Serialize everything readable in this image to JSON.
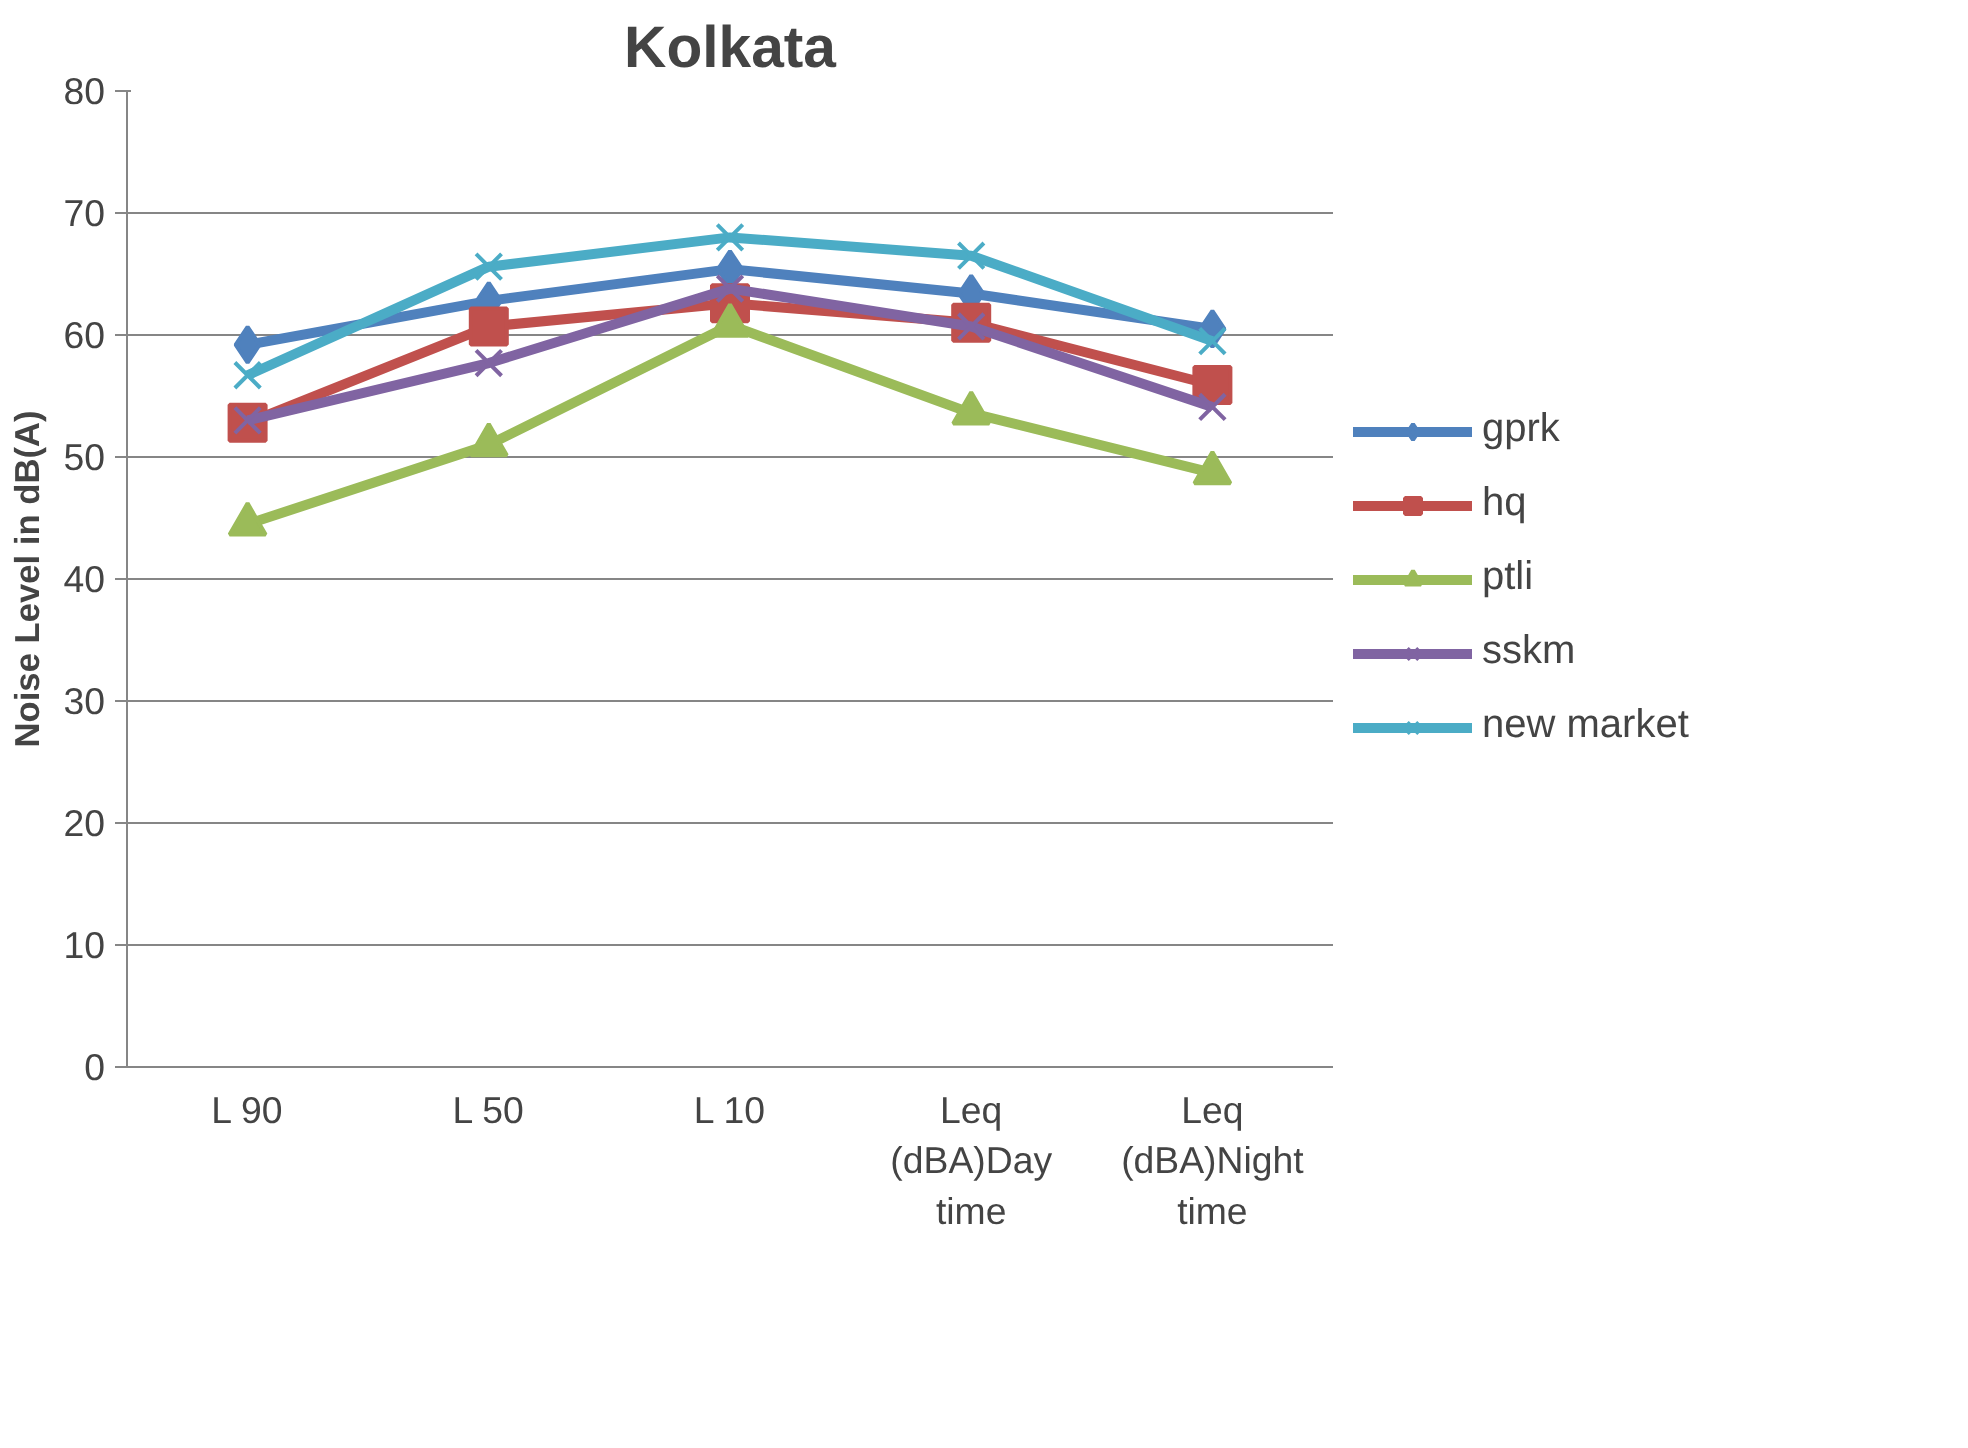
{
  "chart_data": {
    "type": "line",
    "title": "Kolkata",
    "ylabel": "Noise Level in dB(A)",
    "categories": [
      "L 90",
      "L 50",
      "L 10",
      "Leq (dBA)Day time",
      "Leq (dBA)Night time"
    ],
    "series": [
      {
        "name": "gprk",
        "color": "#4f81bd",
        "marker": "diamond",
        "values": [
          59.2,
          62.8,
          65.4,
          63.4,
          60.5
        ]
      },
      {
        "name": "hq",
        "color": "#c0504d",
        "marker": "square",
        "values": [
          52.8,
          60.7,
          62.6,
          61.0,
          55.9
        ]
      },
      {
        "name": "ptli",
        "color": "#9bbb59",
        "marker": "triangle",
        "values": [
          44.5,
          51.0,
          60.8,
          53.6,
          48.7
        ]
      },
      {
        "name": "sskm",
        "color": "#8064a2",
        "marker": "cross",
        "values": [
          53.0,
          57.7,
          63.8,
          60.7,
          54.1
        ]
      },
      {
        "name": "new market",
        "color": "#4bacc6",
        "marker": "cross",
        "values": [
          56.7,
          65.6,
          68.0,
          66.5,
          59.5
        ]
      }
    ],
    "ylim": [
      0,
      80
    ],
    "yticks": [
      0,
      10,
      20,
      30,
      40,
      50,
      60,
      70,
      80
    ],
    "grid": "y",
    "legend": "right",
    "line_style": "solid"
  }
}
